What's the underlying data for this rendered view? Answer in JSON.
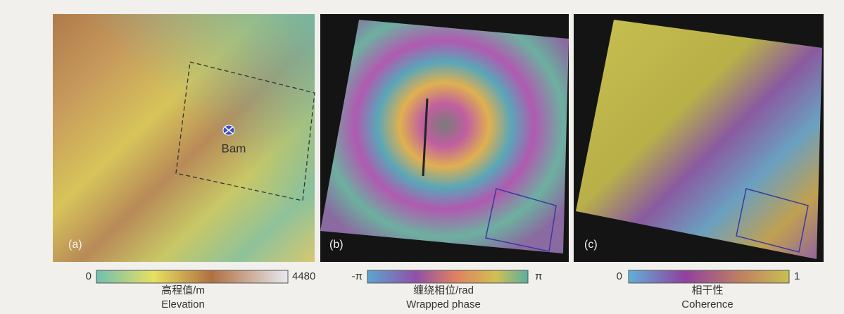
{
  "panels": [
    {
      "label": "(a)",
      "annotation": "Bam",
      "colorbar": {
        "min": "0",
        "max": "4480",
        "title": "高程值/m",
        "caption": "Elevation"
      }
    },
    {
      "label": "(b)",
      "colorbar": {
        "min": "-π",
        "max": "π",
        "title": "缠绕相位/rad",
        "caption": "Wrapped phase"
      }
    },
    {
      "label": "(c)",
      "colorbar": {
        "min": "0",
        "max": "1",
        "title": "相干性",
        "caption": "Coherence"
      }
    }
  ]
}
